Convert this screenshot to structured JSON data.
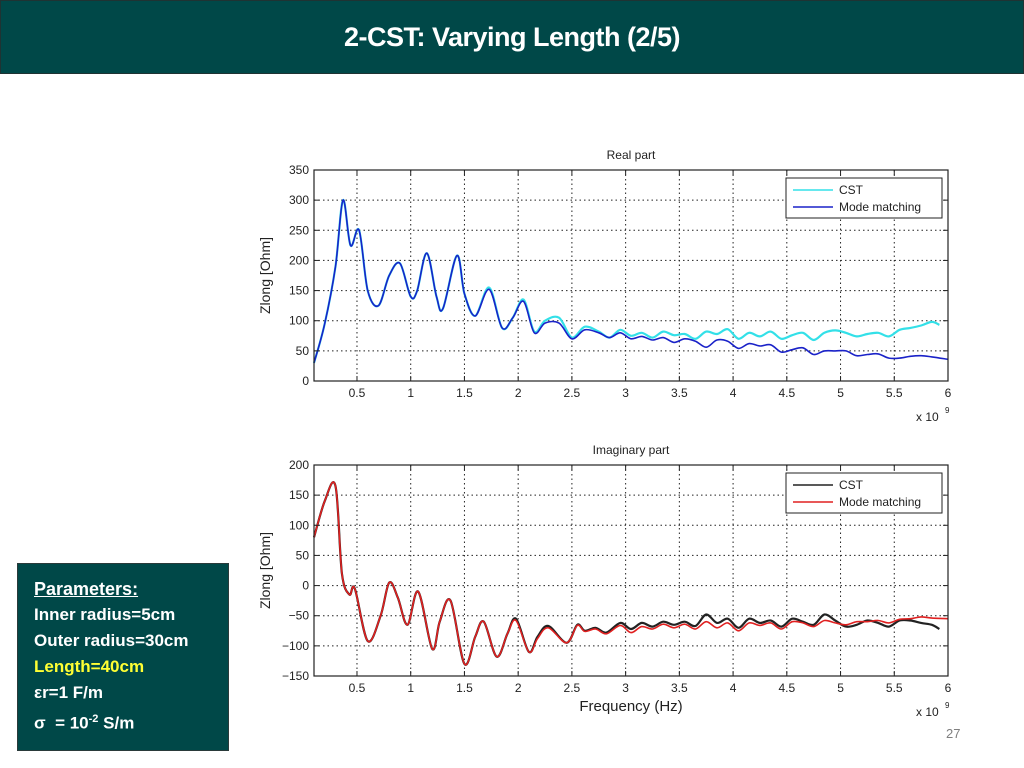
{
  "slide": {
    "title": "2-CST: Varying Length (2/5)",
    "page_number": "27"
  },
  "parameters": {
    "heading": "Parameters:",
    "inner_radius": "Inner radius=5cm",
    "outer_radius": "Outer radius=30cm",
    "length": "Length=40cm",
    "epsilon": "εr=1 F/m",
    "sigma_prefix": "σ  = 10",
    "sigma_exp": "-2",
    "sigma_suffix": " S/m",
    "highlight_color": "#ffff33"
  },
  "chart_data": [
    {
      "type": "line",
      "title": "Real part",
      "xlabel": "",
      "ylabel": "Zlong [Ohm]",
      "x_multiplier": "x 10^9",
      "x_multiplier_base": "x 10",
      "x_multiplier_exp": "9",
      "xlim": [
        0.1,
        6
      ],
      "ylim": [
        0,
        350
      ],
      "xticks": [
        0.5,
        1,
        1.5,
        2,
        2.5,
        3,
        3.5,
        4,
        4.5,
        5,
        5.5,
        6
      ],
      "xtick_labels": [
        "0.5",
        "1",
        "1.5",
        "2",
        "2.5",
        "3",
        "3.5",
        "4",
        "4.5",
        "5",
        "5.5",
        "6"
      ],
      "yticks": [
        0,
        50,
        100,
        150,
        200,
        250,
        300,
        350
      ],
      "ytick_labels": [
        "0",
        "50",
        "100",
        "150",
        "200",
        "250",
        "300",
        "350"
      ],
      "grid": true,
      "legend_position": "top-right",
      "series": [
        {
          "name": "CST",
          "color": "#33e0e8",
          "x": [
            0.1,
            0.2,
            0.3,
            0.37,
            0.44,
            0.52,
            0.6,
            0.7,
            0.8,
            0.9,
            1.0,
            1.06,
            1.15,
            1.24,
            1.3,
            1.43,
            1.5,
            1.6,
            1.73,
            1.85,
            1.95,
            2.05,
            2.15,
            2.25,
            2.38,
            2.5,
            2.62,
            2.75,
            2.85,
            2.95,
            3.05,
            3.15,
            3.25,
            3.35,
            3.45,
            3.55,
            3.65,
            3.75,
            3.85,
            3.95,
            4.05,
            4.15,
            4.25,
            4.35,
            4.45,
            4.55,
            4.65,
            4.75,
            4.85,
            4.95,
            5.05,
            5.15,
            5.25,
            5.35,
            5.45,
            5.55,
            5.65,
            5.75,
            5.85,
            5.92
          ],
          "values": [
            30,
            95,
            190,
            300,
            225,
            250,
            150,
            125,
            175,
            195,
            140,
            150,
            212,
            140,
            120,
            208,
            145,
            108,
            155,
            88,
            105,
            135,
            82,
            100,
            105,
            72,
            90,
            82,
            72,
            85,
            75,
            80,
            72,
            82,
            76,
            78,
            70,
            82,
            78,
            86,
            70,
            80,
            74,
            82,
            70,
            76,
            80,
            68,
            80,
            84,
            80,
            74,
            78,
            80,
            74,
            85,
            88,
            92,
            98,
            93
          ]
        },
        {
          "name": "Mode matching",
          "color": "#1a22c8",
          "x": [
            0.1,
            0.2,
            0.3,
            0.37,
            0.44,
            0.52,
            0.6,
            0.7,
            0.8,
            0.9,
            1.0,
            1.06,
            1.15,
            1.24,
            1.3,
            1.43,
            1.5,
            1.6,
            1.73,
            1.85,
            1.95,
            2.05,
            2.15,
            2.25,
            2.38,
            2.5,
            2.62,
            2.75,
            2.85,
            2.95,
            3.05,
            3.15,
            3.25,
            3.35,
            3.45,
            3.55,
            3.65,
            3.75,
            3.85,
            3.95,
            4.05,
            4.15,
            4.25,
            4.35,
            4.45,
            4.55,
            4.65,
            4.75,
            4.85,
            4.95,
            5.05,
            5.15,
            5.25,
            5.35,
            5.45,
            5.55,
            5.65,
            5.75,
            5.85,
            6.0
          ],
          "values": [
            30,
            95,
            190,
            300,
            225,
            250,
            150,
            125,
            175,
            195,
            140,
            150,
            212,
            140,
            120,
            208,
            145,
            108,
            152,
            88,
            105,
            132,
            80,
            96,
            96,
            70,
            85,
            80,
            72,
            80,
            70,
            74,
            68,
            72,
            64,
            70,
            66,
            56,
            68,
            66,
            54,
            62,
            58,
            60,
            48,
            52,
            55,
            44,
            50,
            50,
            50,
            42,
            44,
            45,
            38,
            38,
            41,
            42,
            40,
            36
          ]
        }
      ]
    },
    {
      "type": "line",
      "title": "Imaginary part",
      "xlabel": "Frequency (Hz)",
      "ylabel": "Zlong [Ohm]",
      "x_multiplier": "x 10^9",
      "x_multiplier_base": "x 10",
      "x_multiplier_exp": "9",
      "xlim": [
        0.1,
        6
      ],
      "ylim": [
        -150,
        200
      ],
      "xticks": [
        0.5,
        1,
        1.5,
        2,
        2.5,
        3,
        3.5,
        4,
        4.5,
        5,
        5.5,
        6
      ],
      "xtick_labels": [
        "0.5",
        "1",
        "1.5",
        "2",
        "2.5",
        "3",
        "3.5",
        "4",
        "4.5",
        "5",
        "5.5",
        "6"
      ],
      "yticks": [
        -150,
        -100,
        -50,
        0,
        50,
        100,
        150,
        200
      ],
      "ytick_labels": [
        "−150",
        "−100",
        "−50",
        "0",
        "50",
        "100",
        "150",
        "200"
      ],
      "grid": true,
      "legend_position": "top-right",
      "series": [
        {
          "name": "CST",
          "color": "#222222",
          "x": [
            0.1,
            0.2,
            0.3,
            0.36,
            0.43,
            0.48,
            0.6,
            0.72,
            0.8,
            0.88,
            0.97,
            1.07,
            1.2,
            1.27,
            1.37,
            1.5,
            1.6,
            1.68,
            1.8,
            1.9,
            1.98,
            2.1,
            2.18,
            2.28,
            2.45,
            2.55,
            2.62,
            2.72,
            2.82,
            2.95,
            3.05,
            3.15,
            3.25,
            3.35,
            3.45,
            3.55,
            3.65,
            3.75,
            3.85,
            3.95,
            4.05,
            4.15,
            4.25,
            4.35,
            4.45,
            4.55,
            4.65,
            4.75,
            4.85,
            4.95,
            5.05,
            5.15,
            5.25,
            5.35,
            5.45,
            5.55,
            5.65,
            5.75,
            5.85,
            5.92
          ],
          "values": [
            80,
            140,
            165,
            20,
            -15,
            -5,
            -92,
            -50,
            5,
            -20,
            -65,
            -10,
            -105,
            -60,
            -25,
            -130,
            -85,
            -60,
            -118,
            -80,
            -55,
            -110,
            -85,
            -67,
            -95,
            -65,
            -75,
            -70,
            -78,
            -62,
            -72,
            -62,
            -68,
            -60,
            -65,
            -60,
            -67,
            -48,
            -62,
            -55,
            -70,
            -55,
            -62,
            -58,
            -68,
            -55,
            -60,
            -65,
            -48,
            -58,
            -68,
            -65,
            -58,
            -62,
            -68,
            -58,
            -58,
            -62,
            -65,
            -72
          ]
        },
        {
          "name": "Mode matching",
          "color": "#e02020",
          "x": [
            0.1,
            0.2,
            0.3,
            0.36,
            0.43,
            0.48,
            0.6,
            0.72,
            0.8,
            0.88,
            0.97,
            1.07,
            1.2,
            1.27,
            1.37,
            1.5,
            1.6,
            1.68,
            1.8,
            1.9,
            1.98,
            2.1,
            2.18,
            2.28,
            2.45,
            2.55,
            2.62,
            2.72,
            2.82,
            2.95,
            3.05,
            3.15,
            3.25,
            3.35,
            3.45,
            3.55,
            3.65,
            3.75,
            3.85,
            3.95,
            4.05,
            4.15,
            4.25,
            4.35,
            4.45,
            4.55,
            4.65,
            4.75,
            4.85,
            4.95,
            5.05,
            5.15,
            5.25,
            5.35,
            5.45,
            5.55,
            5.65,
            5.75,
            5.85,
            6.0
          ],
          "values": [
            80,
            140,
            165,
            20,
            -15,
            -5,
            -92,
            -50,
            5,
            -20,
            -65,
            -10,
            -105,
            -60,
            -25,
            -130,
            -85,
            -60,
            -118,
            -80,
            -58,
            -110,
            -88,
            -70,
            -95,
            -66,
            -76,
            -72,
            -80,
            -66,
            -78,
            -68,
            -72,
            -64,
            -70,
            -64,
            -72,
            -60,
            -70,
            -62,
            -75,
            -62,
            -66,
            -62,
            -72,
            -60,
            -62,
            -68,
            -58,
            -62,
            -65,
            -60,
            -60,
            -58,
            -62,
            -56,
            -55,
            -52,
            -54,
            -55
          ]
        }
      ]
    }
  ]
}
